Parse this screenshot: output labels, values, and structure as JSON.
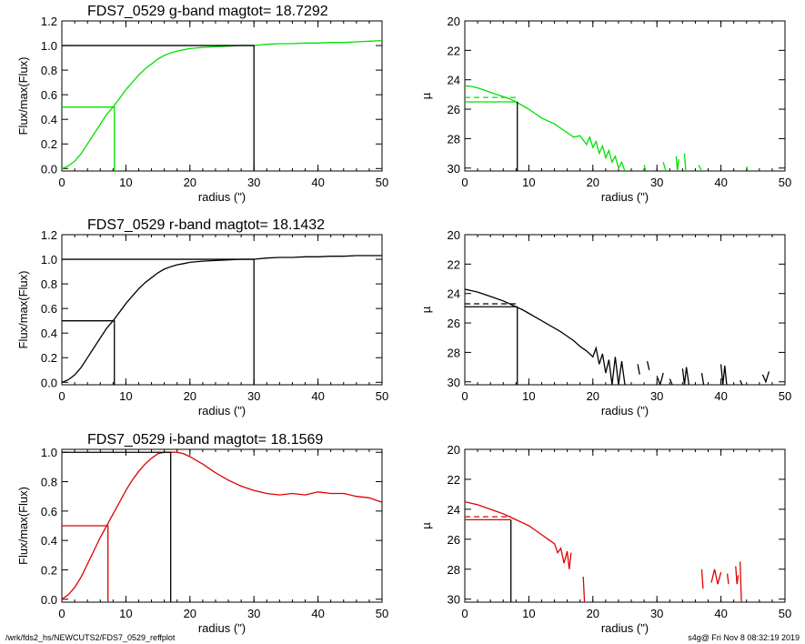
{
  "footer": {
    "left": "/wrk/fds2_hs/NEWCUTS2/FDS7_0529_reffplot",
    "right": "s4g@  Fri Nov  8 08:32:19 2019"
  },
  "colors": {
    "g": "#00e000",
    "r": "#000000",
    "i": "#e00000",
    "axis": "#000000"
  },
  "chart_data": [
    {
      "id": "g-growth",
      "type": "line",
      "title": "FDS7_0529 g-band  magtot=     18.7292",
      "xlabel": "radius (\")",
      "ylabel": "Flux/max(Flux)",
      "xlim": [
        0,
        50
      ],
      "ylim": [
        -0.02,
        1.2
      ],
      "xticks": [
        0,
        10,
        20,
        30,
        40,
        50
      ],
      "yticks": [
        0.0,
        0.2,
        0.4,
        0.6,
        0.8,
        1.0,
        1.2
      ],
      "ytick_labels": [
        "0.0",
        "0.2",
        "0.4",
        "0.6",
        "0.8",
        "1.0",
        "1.2"
      ],
      "series": [
        {
          "color": "#00e000",
          "x": [
            0,
            1,
            2,
            3,
            4,
            5,
            6,
            7,
            8,
            9,
            10,
            11,
            12,
            13,
            14,
            15,
            16,
            17,
            18,
            19,
            20,
            22,
            24,
            26,
            28,
            30,
            32,
            34,
            36,
            38,
            40,
            42,
            44,
            46,
            48,
            50
          ],
          "y": [
            0.0,
            0.02,
            0.06,
            0.12,
            0.2,
            0.28,
            0.36,
            0.44,
            0.5,
            0.57,
            0.64,
            0.7,
            0.76,
            0.81,
            0.85,
            0.89,
            0.92,
            0.94,
            0.955,
            0.965,
            0.975,
            0.985,
            0.99,
            0.995,
            1.0,
            1.0,
            1.01,
            1.015,
            1.015,
            1.02,
            1.02,
            1.025,
            1.025,
            1.03,
            1.035,
            1.04
          ]
        }
      ],
      "half": {
        "x": 8.2,
        "y": 0.5,
        "color": "#00e000"
      },
      "full": {
        "x": 30,
        "y": 1.0,
        "color": "#000000"
      }
    },
    {
      "id": "g-profile",
      "type": "line",
      "title": "",
      "xlabel": "radius (\")",
      "ylabel": "µ",
      "xlim": [
        0,
        50
      ],
      "ylim": [
        30.2,
        20
      ],
      "xticks": [
        0,
        10,
        20,
        30,
        40,
        50
      ],
      "yticks": [
        20,
        22,
        24,
        26,
        28,
        30
      ],
      "ytick_labels": [
        "20",
        "22",
        "24",
        "26",
        "28",
        "30"
      ],
      "series": [
        {
          "color": "#00e000",
          "x": [
            0,
            1,
            2,
            3,
            4,
            5,
            6,
            7,
            8,
            9,
            10,
            11,
            12,
            13,
            14,
            15,
            16,
            17,
            18,
            19,
            19.5,
            20,
            20.5,
            21,
            21.5,
            22,
            22.5,
            23,
            23.5,
            24,
            24.5,
            25
          ],
          "y": [
            24.4,
            24.45,
            24.55,
            24.7,
            24.85,
            25.0,
            25.15,
            25.3,
            25.5,
            25.75,
            26.0,
            26.3,
            26.6,
            26.8,
            27.0,
            27.3,
            27.6,
            27.9,
            27.8,
            28.4,
            27.9,
            28.6,
            28.2,
            29.0,
            28.5,
            29.3,
            28.8,
            29.6,
            29.2,
            30.0,
            29.6,
            30.2
          ]
        }
      ],
      "fragments": [
        {
          "x": [
            28,
            28.3
          ],
          "y": [
            29.8,
            30.2
          ]
        },
        {
          "x": [
            31,
            31.4
          ],
          "y": [
            29.6,
            30.2
          ]
        },
        {
          "x": [
            33,
            33.2,
            33.4
          ],
          "y": [
            29.2,
            30.2,
            29.4
          ]
        },
        {
          "x": [
            34.3,
            34.5
          ],
          "y": [
            29.0,
            30.2
          ]
        },
        {
          "x": [
            36.5,
            37
          ],
          "y": [
            29.8,
            30.2
          ]
        },
        {
          "x": [
            44,
            44.2
          ],
          "y": [
            29.9,
            30.2
          ]
        }
      ],
      "half_mu": 25.5,
      "mean_mu": 25.2,
      "half_x": 8.2
    },
    {
      "id": "r-growth",
      "type": "line",
      "title": "FDS7_0529 r-band  magtot=     18.1432",
      "xlabel": "radius (\")",
      "ylabel": "Flux/max(Flux)",
      "xlim": [
        0,
        50
      ],
      "ylim": [
        -0.02,
        1.2
      ],
      "xticks": [
        0,
        10,
        20,
        30,
        40,
        50
      ],
      "yticks": [
        0.0,
        0.2,
        0.4,
        0.6,
        0.8,
        1.0,
        1.2
      ],
      "ytick_labels": [
        "0.0",
        "0.2",
        "0.4",
        "0.6",
        "0.8",
        "1.0",
        "1.2"
      ],
      "series": [
        {
          "color": "#000000",
          "x": [
            0,
            1,
            2,
            3,
            4,
            5,
            6,
            7,
            8,
            9,
            10,
            11,
            12,
            13,
            14,
            15,
            16,
            17,
            18,
            19,
            20,
            22,
            24,
            26,
            28,
            30,
            32,
            34,
            36,
            38,
            40,
            42,
            44,
            46,
            48,
            50
          ],
          "y": [
            0.0,
            0.02,
            0.06,
            0.12,
            0.2,
            0.28,
            0.36,
            0.44,
            0.5,
            0.57,
            0.64,
            0.7,
            0.76,
            0.81,
            0.85,
            0.89,
            0.92,
            0.94,
            0.955,
            0.965,
            0.975,
            0.985,
            0.99,
            0.995,
            1.0,
            1.0,
            1.01,
            1.015,
            1.015,
            1.02,
            1.02,
            1.025,
            1.025,
            1.03,
            1.03,
            1.03
          ]
        }
      ],
      "half": {
        "x": 8.2,
        "y": 0.5,
        "color": "#000000"
      },
      "full": {
        "x": 30,
        "y": 1.0,
        "color": "#000000"
      }
    },
    {
      "id": "r-profile",
      "type": "line",
      "title": "",
      "xlabel": "radius (\")",
      "ylabel": "µ",
      "xlim": [
        0,
        50
      ],
      "ylim": [
        30.2,
        20
      ],
      "xticks": [
        0,
        10,
        20,
        30,
        40,
        50
      ],
      "yticks": [
        20,
        22,
        24,
        26,
        28,
        30
      ],
      "ytick_labels": [
        "20",
        "22",
        "24",
        "26",
        "28",
        "30"
      ],
      "series": [
        {
          "color": "#000000",
          "x": [
            0,
            1,
            2,
            3,
            4,
            5,
            6,
            7,
            8,
            9,
            10,
            11,
            12,
            13,
            14,
            15,
            16,
            17,
            18,
            19,
            20,
            20.5,
            21,
            21.5,
            22,
            22.5,
            23,
            23.5,
            24,
            24.5,
            25
          ],
          "y": [
            23.7,
            23.8,
            23.9,
            24.05,
            24.2,
            24.35,
            24.5,
            24.7,
            24.9,
            25.1,
            25.35,
            25.6,
            25.85,
            26.1,
            26.35,
            26.6,
            26.9,
            27.2,
            27.6,
            27.9,
            28.3,
            27.7,
            28.8,
            28.1,
            29.4,
            28.5,
            30.2,
            28.3,
            30.2,
            28.6,
            30.2
          ]
        }
      ],
      "fragments": [
        {
          "x": [
            27,
            27.3
          ],
          "y": [
            28.8,
            29.5
          ]
        },
        {
          "x": [
            28.5,
            28.8
          ],
          "y": [
            28.6,
            29.2
          ]
        },
        {
          "x": [
            30,
            30.5,
            31
          ],
          "y": [
            29.6,
            30.2,
            29.4
          ]
        },
        {
          "x": [
            32,
            32.4
          ],
          "y": [
            29.8,
            30.2
          ]
        },
        {
          "x": [
            34,
            34.3,
            34.6,
            35
          ],
          "y": [
            29.1,
            30.2,
            29.0,
            30.2
          ]
        },
        {
          "x": [
            37,
            37.3
          ],
          "y": [
            29.4,
            30.2
          ]
        },
        {
          "x": [
            40,
            40.3,
            40.6,
            40.9
          ],
          "y": [
            28.8,
            30.2,
            28.9,
            30.2
          ]
        },
        {
          "x": [
            43,
            43.3
          ],
          "y": [
            29.9,
            30.2
          ]
        },
        {
          "x": [
            46.5,
            47,
            47.5
          ],
          "y": [
            29.5,
            30.0,
            29.3
          ]
        }
      ],
      "half_mu": 24.9,
      "mean_mu": 24.7,
      "half_x": 8.2
    },
    {
      "id": "i-growth",
      "type": "line",
      "title": "FDS7_0529 i-band  magtot=     18.1569",
      "xlabel": "radius (\")",
      "ylabel": "Flux/max(Flux)",
      "xlim": [
        0,
        50
      ],
      "ylim": [
        -0.02,
        1.02
      ],
      "xticks": [
        0,
        10,
        20,
        30,
        40,
        50
      ],
      "yticks": [
        0.0,
        0.2,
        0.4,
        0.6,
        0.8,
        1.0
      ],
      "ytick_labels": [
        "0.0",
        "0.2",
        "0.4",
        "0.6",
        "0.8",
        "1.0"
      ],
      "series": [
        {
          "color": "#e00000",
          "x": [
            0,
            1,
            2,
            3,
            4,
            5,
            6,
            7,
            8,
            9,
            10,
            11,
            12,
            13,
            14,
            15,
            16,
            17,
            18,
            19,
            20,
            22,
            24,
            26,
            28,
            30,
            32,
            34,
            36,
            38,
            40,
            42,
            44,
            46,
            48,
            50
          ],
          "y": [
            0.0,
            0.03,
            0.08,
            0.15,
            0.24,
            0.33,
            0.42,
            0.5,
            0.58,
            0.66,
            0.74,
            0.81,
            0.87,
            0.92,
            0.96,
            0.99,
            1.0,
            1.0,
            1.0,
            0.99,
            0.97,
            0.92,
            0.86,
            0.81,
            0.77,
            0.74,
            0.72,
            0.71,
            0.72,
            0.71,
            0.73,
            0.72,
            0.72,
            0.7,
            0.69,
            0.66
          ]
        }
      ],
      "half": {
        "x": 7.2,
        "y": 0.5,
        "color": "#e00000"
      },
      "full": {
        "x": 17,
        "y": 1.0,
        "color": "#000000"
      }
    },
    {
      "id": "i-profile",
      "type": "line",
      "title": "",
      "xlabel": "radius (\")",
      "ylabel": "µ",
      "xlim": [
        0,
        50
      ],
      "ylim": [
        30.2,
        20
      ],
      "xticks": [
        0,
        10,
        20,
        30,
        40,
        50
      ],
      "yticks": [
        20,
        22,
        24,
        26,
        28,
        30
      ],
      "ytick_labels": [
        "20",
        "22",
        "24",
        "26",
        "28",
        "30"
      ],
      "series": [
        {
          "color": "#e00000",
          "x": [
            0,
            1,
            2,
            3,
            4,
            5,
            6,
            7,
            8,
            9,
            10,
            11,
            12,
            13,
            14,
            14.5,
            15,
            15.5,
            16,
            16.3,
            16.6
          ],
          "y": [
            23.5,
            23.6,
            23.7,
            23.85,
            24.0,
            24.15,
            24.3,
            24.5,
            24.7,
            24.9,
            25.1,
            25.4,
            25.7,
            26.0,
            26.3,
            26.9,
            26.6,
            27.6,
            26.8,
            28.0,
            26.9
          ]
        }
      ],
      "fragments": [
        {
          "x": [
            18.5,
            18.7
          ],
          "y": [
            28.5,
            30.2
          ]
        },
        {
          "x": [
            37,
            37.2
          ],
          "y": [
            28.0,
            29.3
          ]
        },
        {
          "x": [
            38.5,
            39,
            39.5,
            40
          ],
          "y": [
            28.9,
            28.0,
            29.0,
            28.2
          ]
        },
        {
          "x": [
            41,
            41.2
          ],
          "y": [
            28.3,
            29.0
          ]
        },
        {
          "x": [
            42.3,
            42.5,
            42.7
          ],
          "y": [
            27.8,
            29.0,
            28.4
          ]
        },
        {
          "x": [
            43,
            43.2
          ],
          "y": [
            27.5,
            30.2
          ]
        }
      ],
      "half_mu": 24.7,
      "mean_mu": 24.5,
      "half_x": 7.2
    }
  ]
}
